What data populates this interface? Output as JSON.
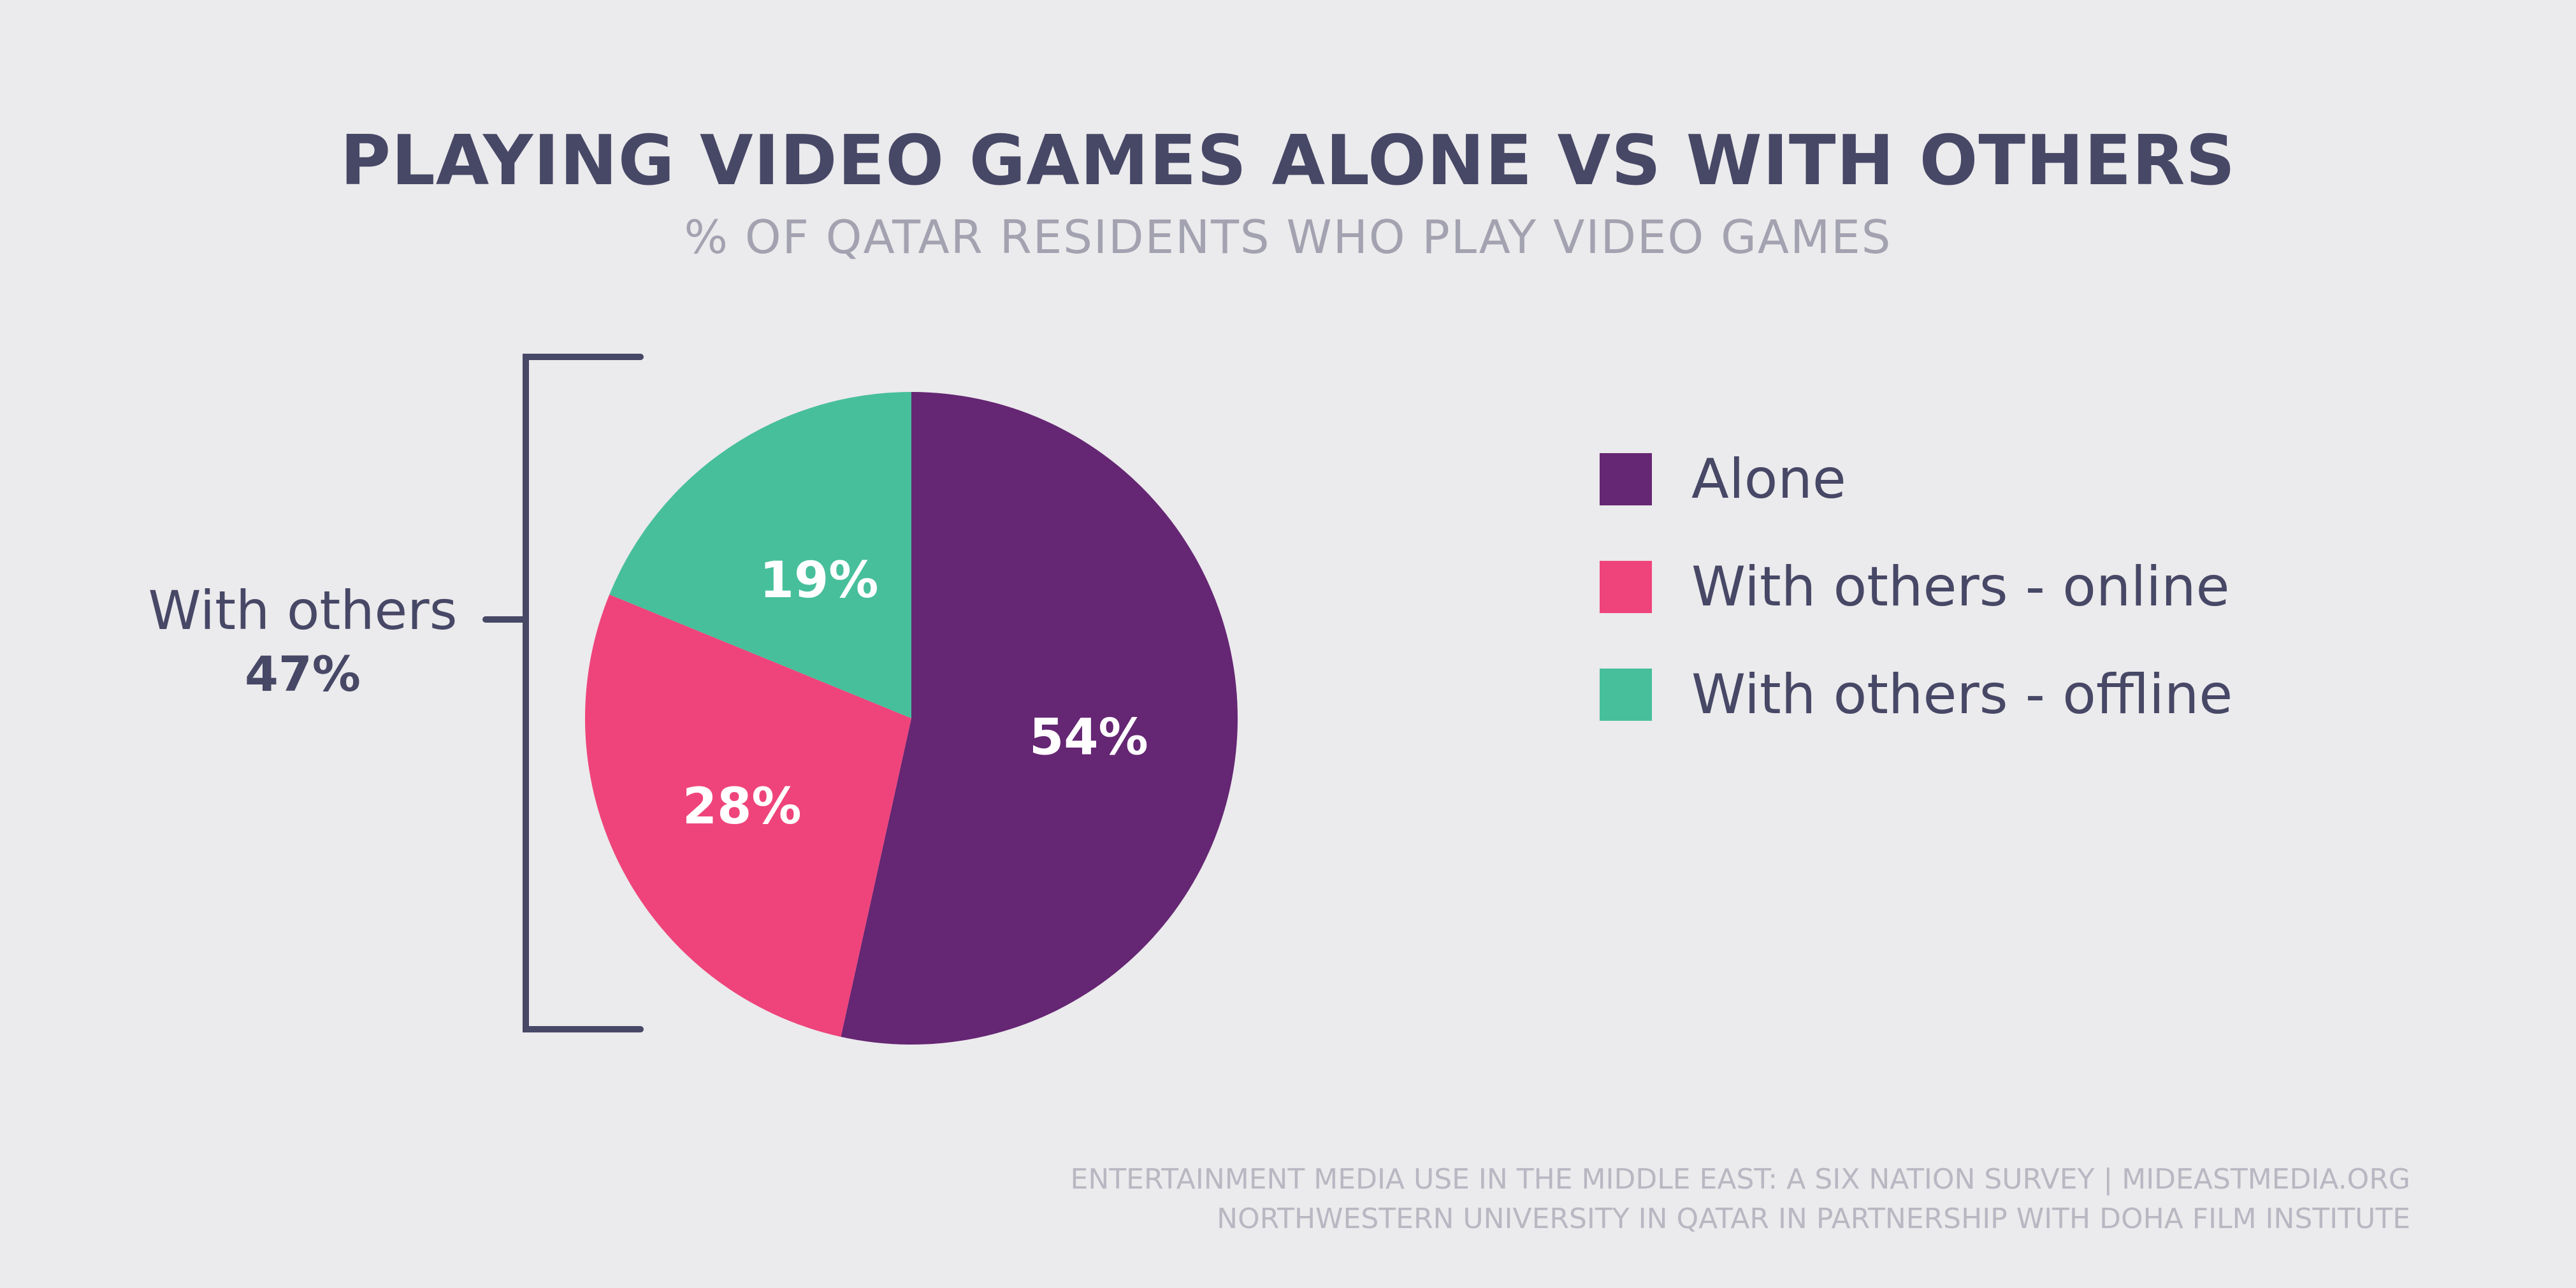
{
  "chart_data": {
    "type": "pie",
    "title": "PLAYING VIDEO GAMES ALONE VS WITH OTHERS",
    "subtitle": "% OF QATAR RESIDENTS WHO PLAY VIDEO GAMES",
    "slices": [
      {
        "label": "Alone",
        "value": 54,
        "display": "54%",
        "color": "#652673"
      },
      {
        "label": "With others - online",
        "value": 28,
        "display": "28%",
        "color": "#ef447b"
      },
      {
        "label": "With others - offline",
        "value": 19,
        "display": "19%",
        "color": "#47bf9b"
      }
    ],
    "legend_position": "right",
    "annotation": {
      "label": "With others",
      "value": "47%",
      "bracket_color": "#474766"
    },
    "source": {
      "line1": "ENTERTAINMENT MEDIA USE IN THE MIDDLE EAST: A SIX NATION SURVEY | MIDEASTMEDIA.ORG",
      "line2": "NORTHWESTERN UNIVERSITY IN QATAR IN PARTNERSHIP WITH DOHA FILM INSTITUTE"
    }
  },
  "colors": {
    "background": "#ebeaec",
    "text": "#474766",
    "subtitle": "#a3a2b0",
    "footer": "#b8b7c2"
  }
}
